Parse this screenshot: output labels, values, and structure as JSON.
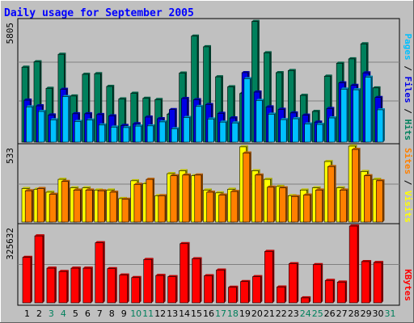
{
  "chart_data": {
    "type": "bar",
    "title": "Daily usage for September 2005",
    "x": [
      "1",
      "2",
      "3",
      "4",
      "5",
      "6",
      "7",
      "8",
      "9",
      "10",
      "11",
      "12",
      "13",
      "14",
      "15",
      "16",
      "17",
      "18",
      "19",
      "20",
      "21",
      "22",
      "23",
      "24",
      "25",
      "26",
      "27",
      "28",
      "29",
      "30",
      "31"
    ],
    "weekend_days": [
      "3",
      "4",
      "10",
      "11",
      "17",
      "18",
      "24",
      "25",
      "31"
    ],
    "colors": {
      "hits": "#00805c",
      "files": "#0000e6",
      "pages": "#00c0ff",
      "visits": "#ffff00",
      "sites": "#ff8000",
      "kbytes": "#ff0000",
      "weekday_label": "#000000",
      "weekend_label": "#00805c",
      "title": "#0000ff"
    },
    "panels": [
      {
        "name": "hits-files-pages",
        "ymax_label": "5805",
        "ymax": 5805,
        "right_label": [
          {
            "text": "Pages",
            "color": "#00c0ff"
          },
          {
            "text": " / ",
            "color": "#000000"
          },
          {
            "text": "Files",
            "color": "#0000e6"
          },
          {
            "text": " / ",
            "color": "#000000"
          },
          {
            "text": "Hits",
            "color": "#00805c"
          }
        ],
        "series": [
          {
            "name": "Hits",
            "color": "#00805c",
            "values": [
              3590,
              3850,
              2580,
              4210,
              2210,
              3250,
              3280,
              2670,
              2070,
              2340,
              2100,
              2040,
              1340,
              3310,
              5080,
              4570,
              3130,
              2650,
              2330,
              5780,
              4280,
              3330,
              3430,
              2240,
              1470,
              3160,
              3780,
              3990,
              4710,
              2600,
              null
            ]
          },
          {
            "name": "Files",
            "color": "#0000e6",
            "values": [
              2010,
              1740,
              1300,
              2530,
              1360,
              1360,
              1320,
              1260,
              800,
              880,
              1200,
              1120,
              1560,
              2090,
              2030,
              1800,
              1380,
              1160,
              3330,
              2400,
              1690,
              1570,
              1400,
              1290,
              960,
              1610,
              2840,
              2720,
              3320,
              2140,
              null
            ]
          },
          {
            "name": "Pages",
            "color": "#00c0ff",
            "values": [
              1690,
              1470,
              1070,
              2180,
              990,
              1060,
              820,
              720,
              700,
              770,
              780,
              970,
              640,
              1180,
              1710,
              1110,
              960,
              920,
              3040,
              2000,
              1340,
              1080,
              1120,
              870,
              850,
              1160,
              2540,
              2510,
              3110,
              1550,
              null
            ]
          }
        ]
      },
      {
        "name": "visits-sites",
        "ymax_label": "533",
        "ymax": 533,
        "right_label": [
          {
            "text": "Sites",
            "color": "#ff8000"
          },
          {
            "text": " / ",
            "color": "#000000"
          },
          {
            "text": "Visits",
            "color": "#ffff00"
          }
        ],
        "series": [
          {
            "name": "Visits",
            "color": "#ffff00",
            "values": [
              235,
              230,
              210,
              300,
              240,
              240,
              225,
              225,
              165,
              290,
              270,
              185,
              340,
              360,
              325,
              225,
              205,
              230,
              528,
              360,
              300,
              250,
              185,
              225,
              240,
              425,
              240,
              535,
              355,
              300,
              null
            ]
          },
          {
            "name": "Sites",
            "color": "#ff8000",
            "values": [
              220,
              235,
              195,
              285,
              225,
              225,
              220,
              210,
              160,
              265,
              300,
              185,
              325,
              330,
              330,
              210,
              190,
              215,
              485,
              330,
              245,
              240,
              180,
              190,
              225,
              390,
              225,
              510,
              325,
              290,
              null
            ]
          }
        ]
      },
      {
        "name": "kbytes",
        "ymax_label": "325632",
        "ymax": 325632,
        "right_label": [
          {
            "text": "KBytes",
            "color": "#ff0000"
          }
        ],
        "series": [
          {
            "name": "KBytes",
            "color": "#ff0000",
            "values": [
              193000,
              284000,
              147000,
              133000,
              147000,
              147000,
              255000,
              145000,
              118000,
              107000,
              184000,
              116000,
              111000,
              251000,
              187000,
              115000,
              139000,
              66000,
              90000,
              111000,
              218000,
              67000,
              166000,
              21000,
              162000,
              95000,
              88000,
              328000,
              175000,
              171000,
              null
            ]
          }
        ]
      }
    ]
  }
}
